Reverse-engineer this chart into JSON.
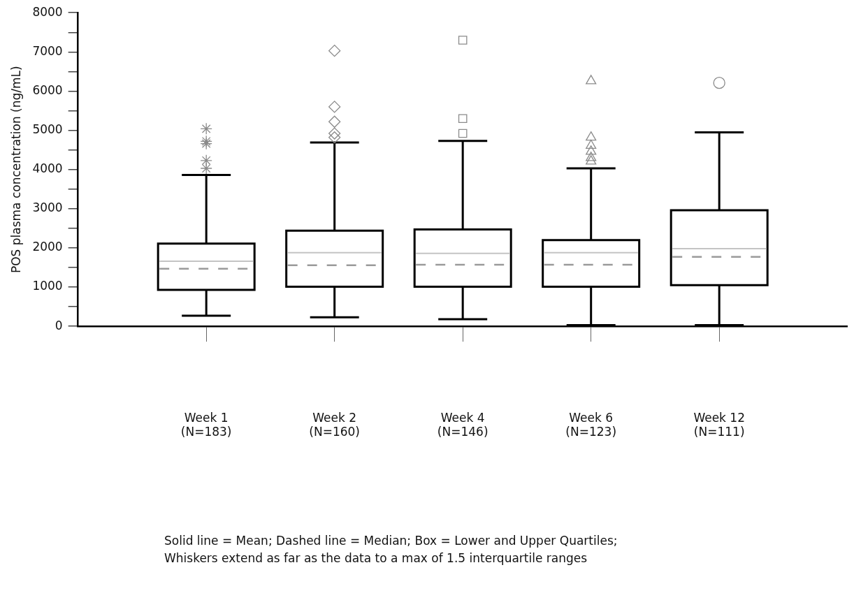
{
  "chart_data": {
    "type": "box",
    "ylabel": "POS plasma concentration (ng/mL)",
    "categories": [
      "Week 1\n(N=183)",
      "Week 2\n(N=160)",
      "Week 4\n(N=146)",
      "Week 6\n(N=123)",
      "Week 12\n(N=111)"
    ],
    "ylim": [
      0,
      8000
    ],
    "yticks": [
      0,
      {
        "value": 500,
        "label": null
      },
      1000,
      {
        "value": 1500,
        "label": null
      },
      2000,
      {
        "value": 2500,
        "label": null
      },
      3000,
      {
        "value": 3500,
        "label": null
      },
      4000,
      {
        "value": 4500,
        "label": null
      },
      5000,
      {
        "value": 5500,
        "label": null
      },
      6000,
      {
        "value": 6500,
        "label": null
      },
      7000,
      {
        "value": 7500,
        "label": null
      },
      8000
    ],
    "grid": false,
    "legend": false,
    "annotations": [
      "Solid line = Mean; Dashed line = Median; Box =  Lower and Upper Quartiles;",
      "Whiskers extend as far as the data to a max of 1.5 interquartile ranges"
    ],
    "series": [
      {
        "color": "#000000",
        "marker": "star",
        "boxes": [
          {
            "low": 270,
            "q1": 930,
            "median": 1470,
            "q3": 2110,
            "high": 3860,
            "mean": 1660,
            "outliers": [
              5040,
              4720,
              4660,
              4230,
              4030
            ]
          },
          null,
          null,
          null,
          null
        ]
      },
      {
        "color": "#000000",
        "marker": "diamond",
        "boxes": [
          null,
          {
            "low": 230,
            "q1": 1010,
            "median": 1560,
            "q3": 2440,
            "high": 4690,
            "mean": 1880,
            "outliers": [
              7030,
              5600,
              5220,
              4920,
              4820
            ]
          },
          null,
          null,
          null
        ]
      },
      {
        "color": "#000000",
        "marker": "square",
        "boxes": [
          null,
          null,
          {
            "low": 180,
            "q1": 1010,
            "median": 1570,
            "q3": 2470,
            "high": 4730,
            "mean": 1860,
            "outliers": [
              7300,
              5300,
              4920
            ]
          },
          null,
          null
        ]
      },
      {
        "color": "#000000",
        "marker": "triangle",
        "boxes": [
          null,
          null,
          null,
          {
            "low": 30,
            "q1": 1010,
            "median": 1570,
            "q3": 2200,
            "high": 4030,
            "mean": 1880,
            "outliers": [
              6260,
              4820,
              4610,
              4460,
              4300,
              4210
            ]
          },
          null
        ]
      },
      {
        "color": "#000000",
        "marker": "circle",
        "boxes": [
          null,
          null,
          null,
          null,
          {
            "low": 30,
            "q1": 1050,
            "median": 1770,
            "q3": 2960,
            "high": 4950,
            "mean": 1980,
            "outliers": [
              6210
            ]
          }
        ]
      }
    ]
  }
}
